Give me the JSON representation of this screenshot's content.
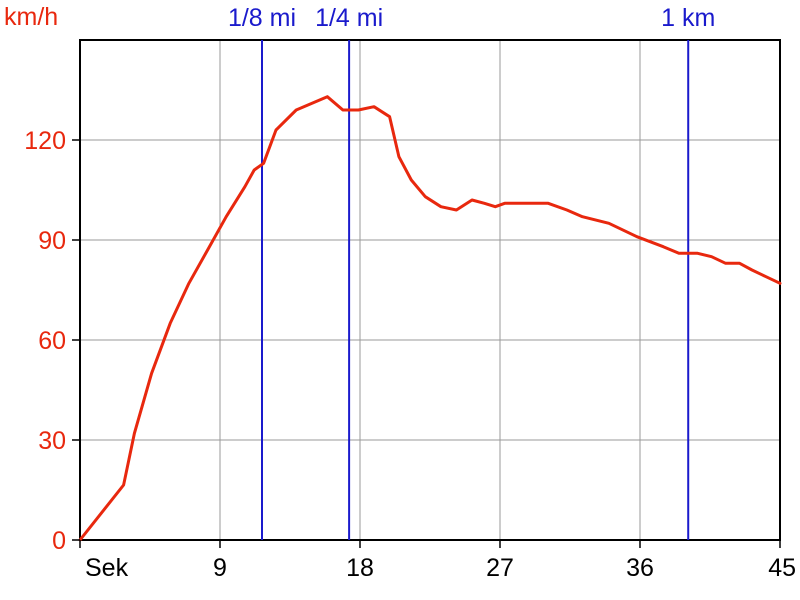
{
  "chart_data": {
    "type": "line",
    "y_unit": "km/h",
    "x_unit": "Sek",
    "xlim": [
      0,
      45
    ],
    "ylim": [
      0,
      150
    ],
    "x_ticks": [
      {
        "value": 0,
        "label": "Sek"
      },
      {
        "value": 9,
        "label": "9"
      },
      {
        "value": 18,
        "label": "18"
      },
      {
        "value": 27,
        "label": "27"
      },
      {
        "value": 36,
        "label": "36"
      },
      {
        "value": 45,
        "label": "45"
      }
    ],
    "y_ticks": [
      0,
      30,
      60,
      90,
      120
    ],
    "grid": true,
    "markers": [
      {
        "x": 11.7,
        "label": "1/8 mi"
      },
      {
        "x": 17.3,
        "label": "1/4 mi"
      },
      {
        "x": 39.1,
        "label": "1 km"
      }
    ],
    "series": [
      {
        "color": "#e8280e",
        "x": [
          0,
          2.8,
          3.5,
          4.6,
          5.8,
          7.0,
          8.2,
          9.4,
          10.6,
          11.2,
          11.8,
          12.6,
          13.9,
          15.9,
          16.9,
          17.9,
          18.9,
          19.9,
          20.5,
          21.3,
          22.2,
          23.2,
          24.2,
          25.2,
          26.0,
          26.7,
          27.3,
          28.3,
          30.1,
          31.3,
          32.3,
          34.0,
          35.8,
          37.5,
          38.5,
          39.7,
          40.6,
          41.5,
          42.4,
          43.2,
          44.1,
          45.0
        ],
        "y": [
          0,
          16.5,
          32,
          50,
          65,
          77,
          87,
          97,
          106,
          111,
          113,
          123,
          129,
          133,
          129,
          129,
          130,
          127,
          115,
          108,
          103,
          100,
          99,
          102,
          101,
          100,
          101,
          101,
          101,
          99,
          97,
          95,
          91,
          88,
          86,
          86,
          85,
          83,
          83,
          81,
          79,
          77
        ]
      }
    ]
  }
}
